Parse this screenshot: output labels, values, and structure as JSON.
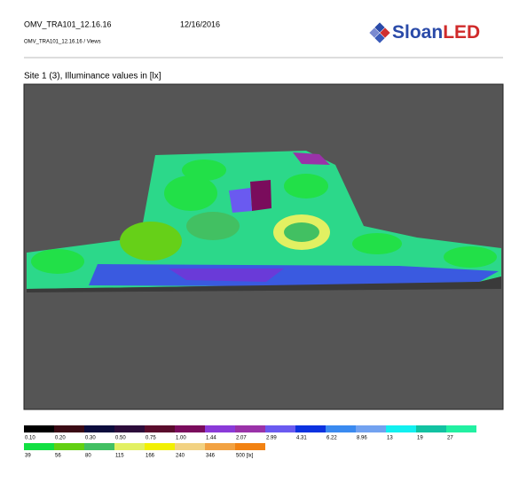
{
  "header": {
    "project": "OMV_TRA101_12.16.16",
    "date": "12/16/2016",
    "subtitle": "OMV_TRA101_12.16.16 / Views",
    "logo": {
      "part1": "Sloan",
      "part2": "LED"
    }
  },
  "view": {
    "title": "Site 1 (3), Illuminance values in [lx]"
  },
  "legend": {
    "rows": [
      [
        {
          "label": "0.10",
          "color": "#000000"
        },
        {
          "label": "0.20",
          "color": "#3a0a14"
        },
        {
          "label": "0.30",
          "color": "#0c0c3c"
        },
        {
          "label": "0.50",
          "color": "#2c0c3a"
        },
        {
          "label": "0.75",
          "color": "#5a0c2c"
        },
        {
          "label": "1.00",
          "color": "#7a0c5c"
        },
        {
          "label": "1.44",
          "color": "#8a3ad8"
        },
        {
          "label": "2.07",
          "color": "#9a32a8"
        },
        {
          "label": "2.99",
          "color": "#6a5af0"
        },
        {
          "label": "4.31",
          "color": "#0c32e0"
        },
        {
          "label": "6.22",
          "color": "#3a8af0"
        },
        {
          "label": "8.96",
          "color": "#72a2f0"
        },
        {
          "label": "13",
          "color": "#12f0f0"
        },
        {
          "label": "19",
          "color": "#12c2a2"
        },
        {
          "label": "27",
          "color": "#22f0a2"
        }
      ],
      [
        {
          "label": "39",
          "color": "#12e042"
        },
        {
          "label": "56",
          "color": "#62d012"
        },
        {
          "label": "80",
          "color": "#42c062"
        },
        {
          "label": "115",
          "color": "#e2f062"
        },
        {
          "label": "166",
          "color": "#f2f002"
        },
        {
          "label": "240",
          "color": "#f2d282"
        },
        {
          "label": "346",
          "color": "#f2a242"
        },
        {
          "label": "500 [lx]",
          "color": "#f28212"
        }
      ]
    ]
  }
}
